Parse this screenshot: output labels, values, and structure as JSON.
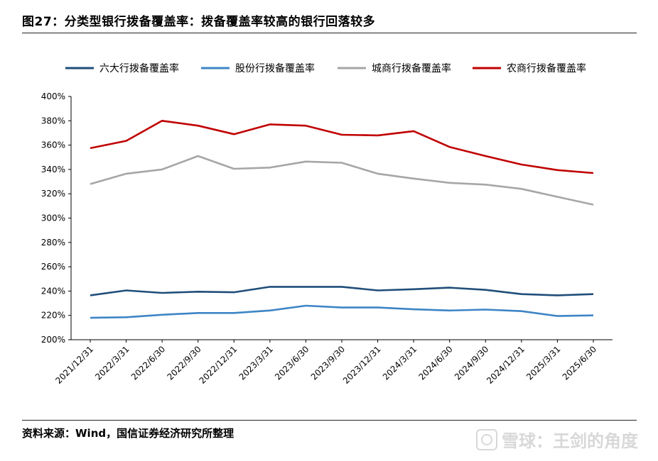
{
  "header": {
    "title": "图27：分类型银行拨备覆盖率：拨备覆盖率较高的银行回落较多"
  },
  "footer": {
    "source": "资料来源：Wind，国信证券经济研究所整理",
    "watermark": "雪球：王剑的角度"
  },
  "colors": {
    "six_big": "#1f4e79",
    "joint_stock": "#3d85c6",
    "city_commercial": "#a6a6a6",
    "rural_commercial": "#c00000"
  },
  "chart_data": {
    "type": "line",
    "title": "",
    "xlabel": "",
    "ylabel": "",
    "ylim": [
      200,
      400
    ],
    "yticks": [
      "200%",
      "220%",
      "240%",
      "260%",
      "280%",
      "300%",
      "320%",
      "340%",
      "360%",
      "380%",
      "400%"
    ],
    "legend_position": "top",
    "grid": false,
    "categories": [
      "2021/12/31",
      "2022/3/31",
      "2022/6/30",
      "2022/9/30",
      "2022/12/31",
      "2023/3/31",
      "2023/6/30",
      "2023/9/30",
      "2023/12/31",
      "2024/3/31",
      "2024/6/30",
      "2024/9/30",
      "2024/12/31",
      "2025/3/31",
      "2025/6/30"
    ],
    "series": [
      {
        "name": "六大行拨备覆盖率",
        "color": "#1f4e79",
        "values": [
          236.5,
          240.5,
          238.5,
          239.5,
          239,
          243.5,
          243.5,
          243.5,
          240.5,
          241.5,
          242.8,
          241,
          237.5,
          236.5,
          237.5
        ]
      },
      {
        "name": "股份行拨备覆盖率",
        "color": "#3d85c6",
        "values": [
          218,
          218.5,
          220.5,
          222,
          222,
          224,
          228,
          226.5,
          226.5,
          225,
          224,
          224.8,
          223.5,
          219.5,
          220
        ]
      },
      {
        "name": "城商行拨备覆盖率",
        "color": "#a6a6a6",
        "values": [
          328,
          336.5,
          340,
          351,
          340.5,
          341.5,
          346.5,
          345.5,
          336.5,
          332.5,
          329,
          327.5,
          324,
          317.5,
          311
        ]
      },
      {
        "name": "农商行拨备覆盖率",
        "color": "#c00000",
        "values": [
          357.5,
          363.5,
          380,
          376,
          369,
          377,
          376,
          368.5,
          368,
          371.5,
          358.5,
          351,
          344,
          339.5,
          337
        ]
      }
    ]
  }
}
